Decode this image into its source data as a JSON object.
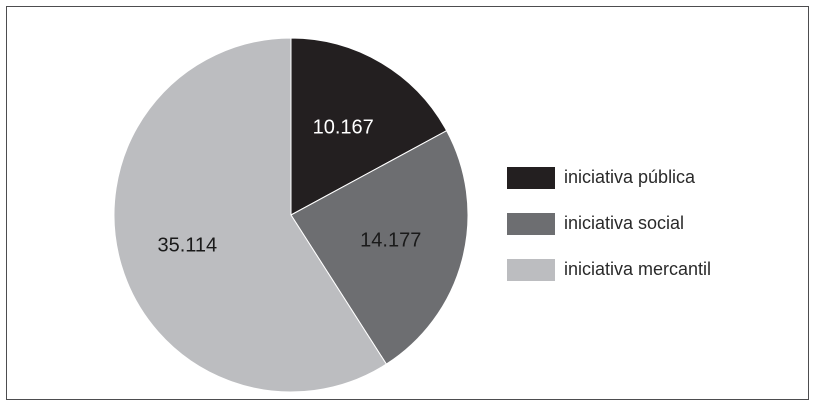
{
  "chart_data": {
    "type": "pie",
    "categories": [
      "iniciativa pública",
      "iniciativa social",
      "iniciativa mercantil"
    ],
    "values": [
      10167,
      14177,
      35114
    ],
    "data_labels": [
      "10.167",
      "14.177",
      "35.114"
    ],
    "colors": [
      "#231f20",
      "#6d6e71",
      "#bcbdc0"
    ],
    "label_colors": [
      "#ffffff",
      "#1a1a1a",
      "#1a1a1a"
    ],
    "legend_position": "right",
    "start": "top",
    "direction": "clockwise"
  },
  "legend": {
    "items": [
      {
        "label": "iniciativa pública",
        "color": "#231f20"
      },
      {
        "label": "iniciativa social",
        "color": "#6d6e71"
      },
      {
        "label": "iniciativa mercantil",
        "color": "#bcbdc0"
      }
    ]
  }
}
